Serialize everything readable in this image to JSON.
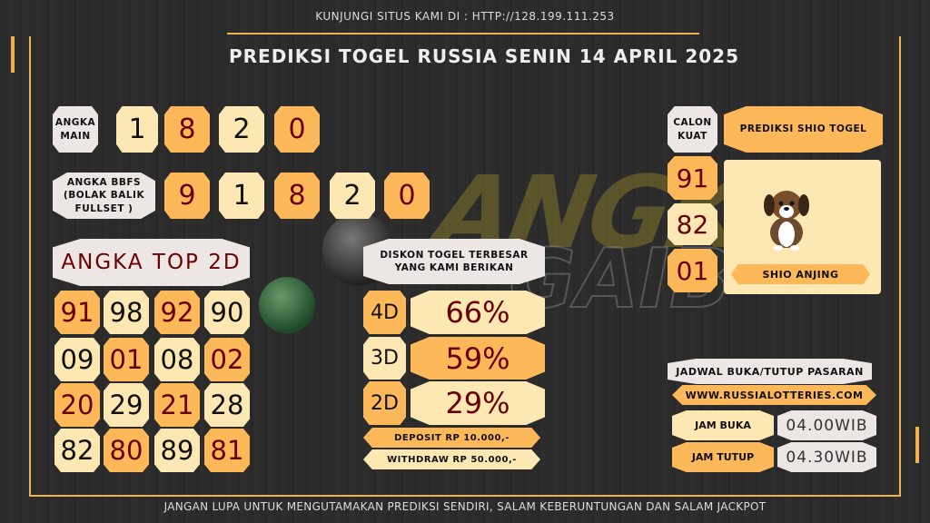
{
  "header": {
    "visit": "KUNJUNGI SITUS KAMI DI : HTTP://128.199.111.253",
    "title": "PREDIKSI TOGEL RUSSIA SENIN 14 APRIL 2025"
  },
  "watermark": "ANGKA GAIB",
  "angka_main": {
    "label": "ANGKA MAIN",
    "digits": [
      "1",
      "8",
      "2",
      "0"
    ]
  },
  "bbfs": {
    "label": "ANGKA BBFS (BOLAK BALIK FULLSET )",
    "digits": [
      "9",
      "1",
      "8",
      "2",
      "0"
    ]
  },
  "top2d": {
    "title": "ANGKA TOP 2D",
    "rows": [
      [
        "91",
        "98",
        "92",
        "90"
      ],
      [
        "09",
        "01",
        "08",
        "02"
      ],
      [
        "20",
        "29",
        "21",
        "28"
      ],
      [
        "82",
        "80",
        "89",
        "81"
      ]
    ]
  },
  "diskon": {
    "title": "DISKON TOGEL TERBESAR YANG KAMI BERIKAN",
    "items": [
      {
        "type": "4D",
        "value": "66%"
      },
      {
        "type": "3D",
        "value": "59%"
      },
      {
        "type": "2D",
        "value": "29%"
      }
    ],
    "deposit": "DEPOSIT RP 10.000,-",
    "withdraw": "WITHDRAW RP 50.000,-"
  },
  "calon_kuat": {
    "label": "CALON KUAT",
    "numbers": [
      "91",
      "82",
      "01"
    ]
  },
  "shio": {
    "title": "PREDIKSI SHIO TOGEL",
    "name": "SHIO ANJING",
    "icon": "dog-icon"
  },
  "jadwal": {
    "title": "JADWAL BUKA/TUTUP PASARAN",
    "website": "WWW.RUSSIALOTTERIES.COM",
    "buka_label": "JAM BUKA",
    "buka": "04.00WIB",
    "tutup_label": "JAM TUTUP",
    "tutup": "04.30WIB"
  },
  "footer": "JANGAN LUPA UNTUK MENGUTAMAKAN PREDIKSI SENDIRI, SALAM KEBERUNTUNGAN DAN SALAM JACKPOT",
  "colors": {
    "light": "#fde8b4",
    "orange": "#fdb85a",
    "grey": "#ece6e4",
    "dark_red": "#6b0000",
    "frame": "#f2b14f"
  }
}
